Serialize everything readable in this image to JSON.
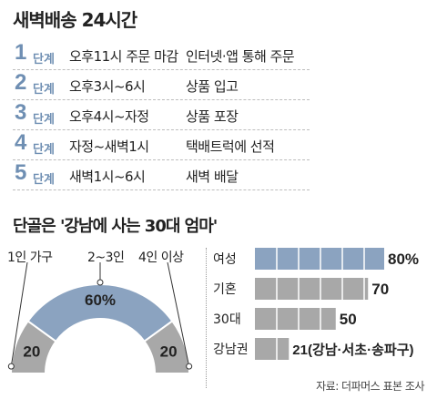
{
  "title": "새벽배송 24시간",
  "step_label": "단계",
  "steps": [
    {
      "num": "1",
      "time": "오후11시 주문 마감",
      "desc": "인터넷·앱 통해 주문"
    },
    {
      "num": "2",
      "time": "오후3시~6시",
      "desc": "상품 입고"
    },
    {
      "num": "3",
      "time": "오후4시~자정",
      "desc": "상품 포장"
    },
    {
      "num": "4",
      "time": "자정~새벽1시",
      "desc": "택배트럭에 선적"
    },
    {
      "num": "5",
      "time": "새벽1시~6시",
      "desc": "새벽 배달"
    }
  ],
  "subtitle": "단골은 '강남에 사는 30대 엄마'",
  "source": "자료: 더파머스 표본 조사",
  "colors": {
    "accent": "#6f8fb3",
    "highlight": "#8ba3c0",
    "gray": "#a8a8a8",
    "bg_bar": "#d6d6d6"
  },
  "chart_data": [
    {
      "type": "pie",
      "categories": [
        "1인 가구",
        "2~3인",
        "4인 이상"
      ],
      "values": [
        20,
        60,
        20
      ],
      "value_labels": [
        "20",
        "60%",
        "20"
      ]
    },
    {
      "type": "bar",
      "categories": [
        "여성",
        "기혼",
        "30대",
        "강남권"
      ],
      "values": [
        80,
        70,
        50,
        21
      ],
      "value_labels": [
        "80%",
        "70",
        "50",
        "21(강남·서초·송파구)"
      ],
      "xlim": [
        0,
        80
      ]
    }
  ]
}
